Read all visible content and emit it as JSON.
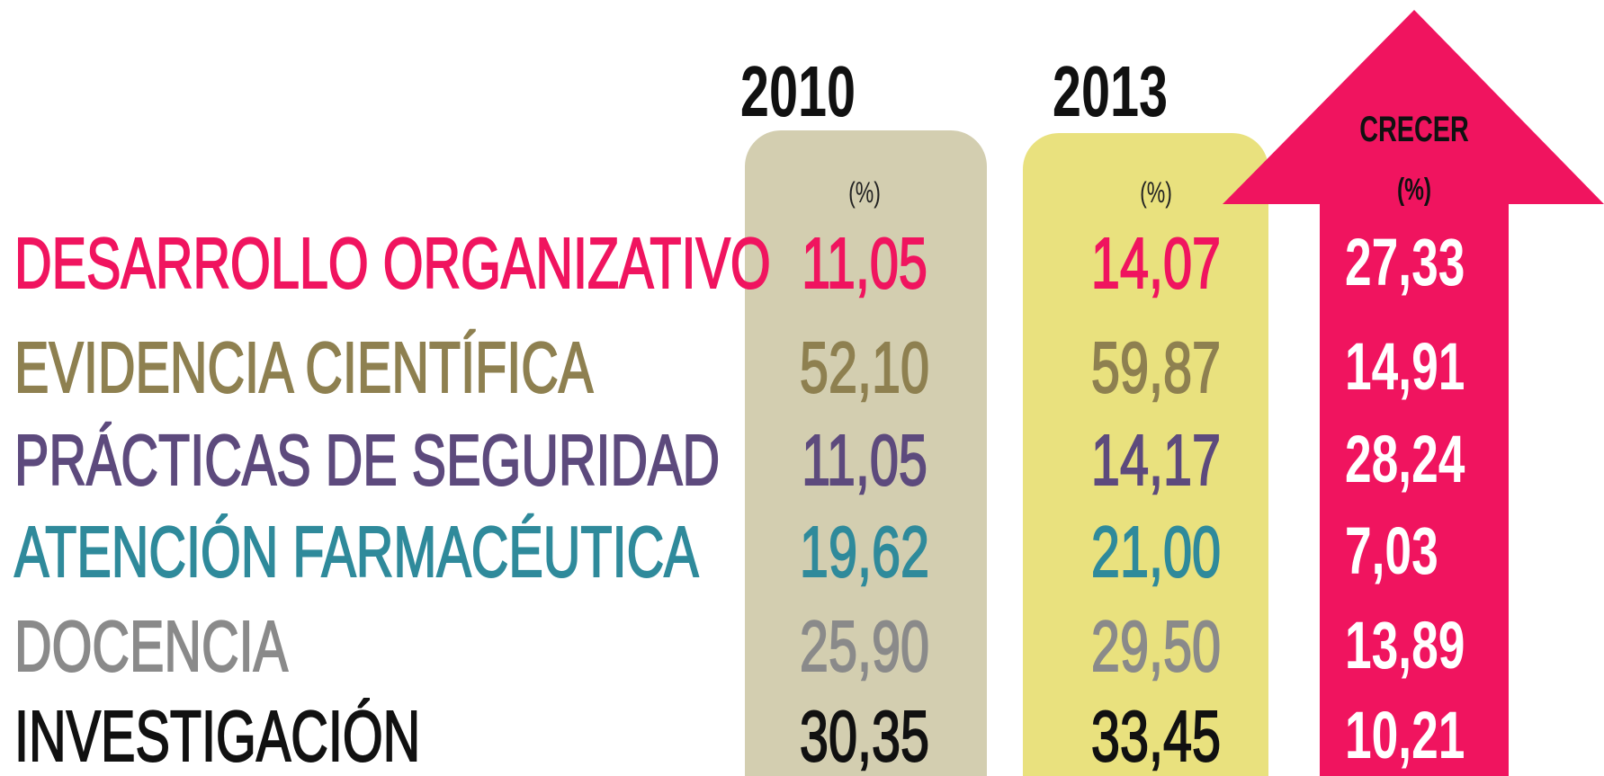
{
  "header": {
    "col_2010": {
      "year": "2010",
      "unit": "(%)"
    },
    "col_2013": {
      "year": "2013",
      "unit": "(%)"
    },
    "col_growth": {
      "title": "CRECER",
      "unit": "(%)"
    }
  },
  "table": {
    "rows": [
      {
        "label": "DESARROLLO ORGANIZATIVO",
        "v2010": "11,05",
        "v2013": "14,07",
        "growth": "27,33",
        "color": "#f0145f"
      },
      {
        "label": "EVIDENCIA CIENTÍFICA",
        "v2010": "52,10",
        "v2013": "59,87",
        "growth": "14,91",
        "color": "#8e8050"
      },
      {
        "label": "PRÁCTICAS DE SEGURIDAD",
        "v2010": "11,05",
        "v2013": "14,17",
        "growth": "28,24",
        "color": "#5d4a7d"
      },
      {
        "label": "ATENCIÓN FARMACÉUTICA",
        "v2010": "19,62",
        "v2013": "21,00",
        "growth": "7,03",
        "color": "#2f8a9b"
      },
      {
        "label": "DOCENCIA",
        "v2010": "25,90",
        "v2013": "29,50",
        "growth": "13,89",
        "color": "#8a8a8a"
      },
      {
        "label": "INVESTIGACIÓN",
        "v2010": "30,35",
        "v2013": "33,45",
        "growth": "10,21",
        "color": "#111111"
      }
    ]
  }
}
